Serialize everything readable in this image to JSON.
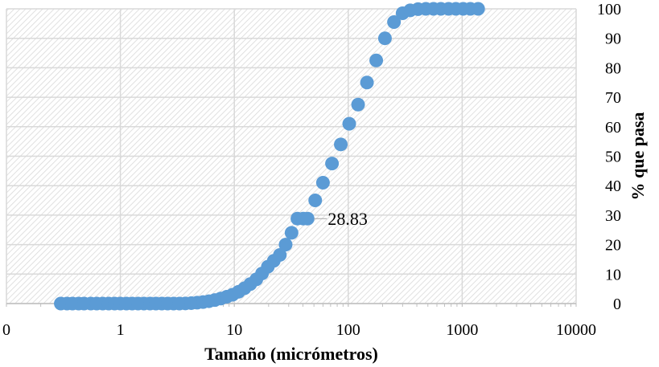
{
  "chart_data": {
    "type": "scatter",
    "title": "",
    "xlabel": "Tamaño (micrómetros)",
    "ylabel": "% que pasa",
    "x_scale": "log",
    "xlim": [
      0.1,
      10000
    ],
    "ylim": [
      0,
      100
    ],
    "x_tick_labels": [
      "0",
      "1",
      "10",
      "100",
      "1000",
      "10000"
    ],
    "y_tick_labels": [
      "0",
      "10",
      "20",
      "30",
      "40",
      "50",
      "60",
      "70",
      "80",
      "90",
      "100"
    ],
    "y_axis_position": "right",
    "grid": true,
    "legend": "none",
    "marker_color": "#5b9bd5",
    "annotation": {
      "text": "28.83",
      "x": 44,
      "y": 28.83
    },
    "series": [
      {
        "x": [
          0.3,
          0.34,
          0.38,
          0.43,
          0.48,
          0.55,
          0.62,
          0.7,
          0.79,
          0.89,
          1.0,
          1.13,
          1.27,
          1.43,
          1.61,
          1.82,
          2.05,
          2.31,
          2.6,
          2.93,
          3.3,
          3.72,
          4.19,
          4.72,
          5.32,
          5.99,
          6.75,
          7.61,
          8.57,
          9.66,
          10.9,
          12.3,
          13.8,
          15.6,
          17.5,
          19.7,
          22.2,
          25.1,
          28.2,
          31.8,
          35.8,
          40.3,
          44.0,
          51.3,
          60.0,
          72.0,
          86.0,
          102.0,
          122.0,
          146.0,
          176.0,
          210.0,
          252.0,
          300.0,
          350.0,
          410.0,
          480.0,
          560.0,
          650.0,
          760.0,
          880.0,
          1020.0,
          1180.0,
          1380.0
        ],
        "values": [
          0,
          0,
          0,
          0,
          0,
          0,
          0,
          0,
          0,
          0,
          0,
          0,
          0,
          0,
          0,
          0,
          0,
          0,
          0,
          0,
          0,
          0.05,
          0.15,
          0.3,
          0.5,
          0.8,
          1.2,
          1.7,
          2.3,
          3.0,
          4.0,
          5.2,
          6.6,
          8.2,
          10.2,
          12.5,
          14.5,
          16.5,
          20.0,
          24.0,
          28.83,
          28.83,
          28.83,
          35.0,
          41.0,
          47.5,
          54.0,
          61.0,
          67.5,
          75.0,
          82.5,
          90.0,
          95.5,
          98.5,
          99.5,
          99.9,
          100,
          100,
          100,
          100,
          100,
          100,
          100,
          100
        ]
      }
    ]
  }
}
